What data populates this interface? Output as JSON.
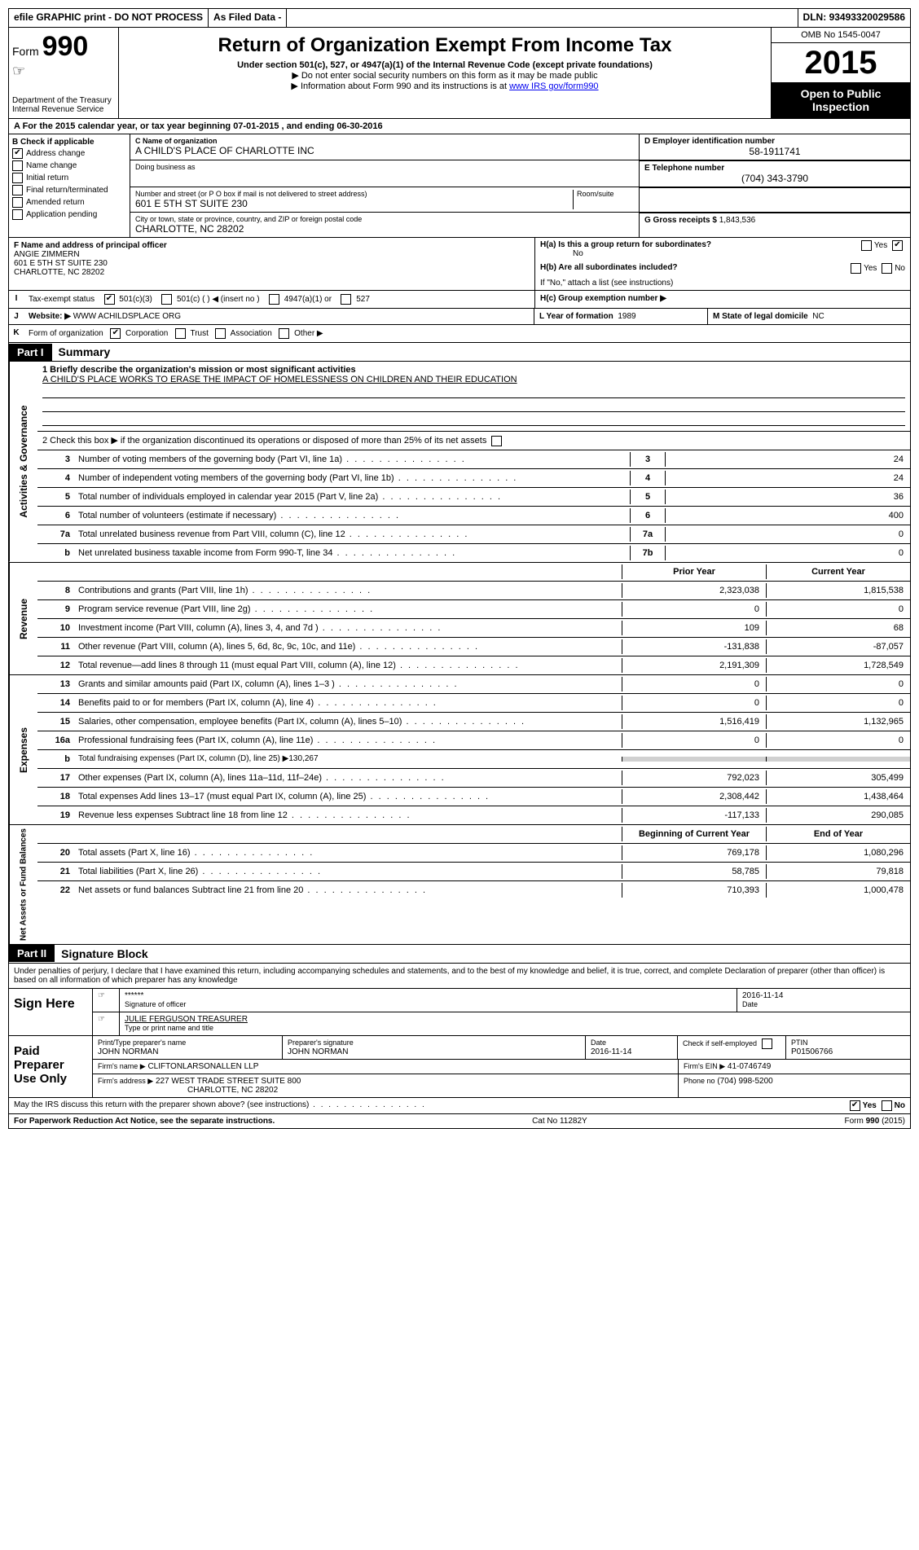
{
  "topbar": {
    "efile": "efile GRAPHIC print - DO NOT PROCESS",
    "asfiled": "As Filed Data -",
    "dln_label": "DLN:",
    "dln": "93493320029586"
  },
  "header": {
    "form_label": "Form",
    "form_num": "990",
    "dept": "Department of the Treasury",
    "irs": "Internal Revenue Service",
    "title": "Return of Organization Exempt From Income Tax",
    "sub1": "Under section 501(c), 527, or 4947(a)(1) of the Internal Revenue Code (except private foundations)",
    "sub2": "▶ Do not enter social security numbers on this form as it may be made public",
    "sub3": "▶ Information about Form 990 and its instructions is at ",
    "link": "www IRS gov/form990",
    "omb": "OMB No 1545-0047",
    "year": "2015",
    "open": "Open to Public Inspection"
  },
  "rowA": "A  For the 2015 calendar year, or tax year beginning 07-01-2015    , and ending 06-30-2016",
  "boxB": {
    "title": "B Check if applicable",
    "items": [
      {
        "label": "Address change",
        "checked": true
      },
      {
        "label": "Name change",
        "checked": false
      },
      {
        "label": "Initial return",
        "checked": false
      },
      {
        "label": "Final return/terminated",
        "checked": false
      },
      {
        "label": "Amended return",
        "checked": false
      },
      {
        "label": "Application pending",
        "checked": false
      }
    ]
  },
  "boxC": {
    "label": "C Name of organization",
    "name": "A CHILD'S PLACE OF CHARLOTTE INC",
    "dba_label": "Doing business as",
    "addr_label": "Number and street (or P O box if mail is not delivered to street address)",
    "room_label": "Room/suite",
    "addr": "601 E 5TH ST SUITE 230",
    "city_label": "City or town, state or province, country, and ZIP or foreign postal code",
    "city": "CHARLOTTE, NC 28202"
  },
  "boxD": {
    "label": "D Employer identification number",
    "value": "58-1911741"
  },
  "boxE": {
    "label": "E Telephone number",
    "value": "(704) 343-3790"
  },
  "boxG": {
    "label": "G Gross receipts $",
    "value": "1,843,536"
  },
  "boxF": {
    "label": "F Name and address of principal officer",
    "name": "ANGIE ZIMMERN",
    "addr1": "601 E 5TH ST SUITE 230",
    "addr2": "CHARLOTTE, NC 28202"
  },
  "boxH": {
    "ha": "H(a)  Is this a group return for subordinates?",
    "ha_ans": "No",
    "hb": "H(b)  Are all subordinates included?",
    "hb_note": "If \"No,\" attach a list (see instructions)",
    "hc": "H(c)  Group exemption number ▶"
  },
  "rowI": {
    "label": "I",
    "text": "Tax-exempt status",
    "opt1": "501(c)(3)",
    "opt2": "501(c) (  ) ◀ (insert no )",
    "opt3": "4947(a)(1) or",
    "opt4": "527"
  },
  "rowJ": {
    "label": "J",
    "text": "Website: ▶",
    "value": "WWW ACHILDSPLACE ORG"
  },
  "rowK": {
    "label": "K",
    "text": "Form of organization",
    "opts": [
      "Corporation",
      "Trust",
      "Association",
      "Other ▶"
    ],
    "checked": 0
  },
  "rowL": {
    "label": "L Year of formation",
    "value": "1989"
  },
  "rowM": {
    "label": "M State of legal domicile",
    "value": "NC"
  },
  "parts": {
    "p1": "Part I",
    "p1_title": "Summary",
    "p2": "Part II",
    "p2_title": "Signature Block"
  },
  "summary": {
    "q1": "1 Briefly describe the organization's mission or most significant activities",
    "mission": "A CHILD'S PLACE WORKS TO ERASE THE IMPACT OF HOMELESSNESS ON CHILDREN AND THEIR EDUCATION",
    "q2": "2 Check this box ▶     if the organization discontinued its operations or disposed of more than 25% of its net assets",
    "lines_gov": [
      {
        "n": "3",
        "d": "Number of voting members of the governing body (Part VI, line 1a)",
        "k": "3",
        "v": "24"
      },
      {
        "n": "4",
        "d": "Number of independent voting members of the governing body (Part VI, line 1b)",
        "k": "4",
        "v": "24"
      },
      {
        "n": "5",
        "d": "Total number of individuals employed in calendar year 2015 (Part V, line 2a)",
        "k": "5",
        "v": "36"
      },
      {
        "n": "6",
        "d": "Total number of volunteers (estimate if necessary)",
        "k": "6",
        "v": "400"
      },
      {
        "n": "7a",
        "d": "Total unrelated business revenue from Part VIII, column (C), line 12",
        "k": "7a",
        "v": "0"
      },
      {
        "n": "b",
        "d": "Net unrelated business taxable income from Form 990-T, line 34",
        "k": "7b",
        "v": "0"
      }
    ],
    "hdr_prior": "Prior Year",
    "hdr_current": "Current Year",
    "lines_rev": [
      {
        "n": "8",
        "d": "Contributions and grants (Part VIII, line 1h)",
        "p": "2,323,038",
        "c": "1,815,538"
      },
      {
        "n": "9",
        "d": "Program service revenue (Part VIII, line 2g)",
        "p": "0",
        "c": "0"
      },
      {
        "n": "10",
        "d": "Investment income (Part VIII, column (A), lines 3, 4, and 7d )",
        "p": "109",
        "c": "68"
      },
      {
        "n": "11",
        "d": "Other revenue (Part VIII, column (A), lines 5, 6d, 8c, 9c, 10c, and 11e)",
        "p": "-131,838",
        "c": "-87,057"
      },
      {
        "n": "12",
        "d": "Total revenue—add lines 8 through 11 (must equal Part VIII, column (A), line 12)",
        "p": "2,191,309",
        "c": "1,728,549"
      }
    ],
    "lines_exp": [
      {
        "n": "13",
        "d": "Grants and similar amounts paid (Part IX, column (A), lines 1–3 )",
        "p": "0",
        "c": "0"
      },
      {
        "n": "14",
        "d": "Benefits paid to or for members (Part IX, column (A), line 4)",
        "p": "0",
        "c": "0"
      },
      {
        "n": "15",
        "d": "Salaries, other compensation, employee benefits (Part IX, column (A), lines 5–10)",
        "p": "1,516,419",
        "c": "1,132,965"
      },
      {
        "n": "16a",
        "d": "Professional fundraising fees (Part IX, column (A), line 11e)",
        "p": "0",
        "c": "0"
      },
      {
        "n": "b",
        "d": "Total fundraising expenses (Part IX, column (D), line 25) ▶130,267",
        "p": "",
        "c": "",
        "gray": true
      },
      {
        "n": "17",
        "d": "Other expenses (Part IX, column (A), lines 11a–11d, 11f–24e)",
        "p": "792,023",
        "c": "305,499"
      },
      {
        "n": "18",
        "d": "Total expenses Add lines 13–17 (must equal Part IX, column (A), line 25)",
        "p": "2,308,442",
        "c": "1,438,464"
      },
      {
        "n": "19",
        "d": "Revenue less expenses Subtract line 18 from line 12",
        "p": "-117,133",
        "c": "290,085"
      }
    ],
    "hdr_boy": "Beginning of Current Year",
    "hdr_eoy": "End of Year",
    "lines_net": [
      {
        "n": "20",
        "d": "Total assets (Part X, line 16)",
        "p": "769,178",
        "c": "1,080,296"
      },
      {
        "n": "21",
        "d": "Total liabilities (Part X, line 26)",
        "p": "58,785",
        "c": "79,818"
      },
      {
        "n": "22",
        "d": "Net assets or fund balances Subtract line 21 from line 20",
        "p": "710,393",
        "c": "1,000,478"
      }
    ]
  },
  "side_labels": {
    "gov": "Activities & Governance",
    "rev": "Revenue",
    "exp": "Expenses",
    "net": "Net Assets or Fund Balances"
  },
  "sig": {
    "perjury": "Under penalties of perjury, I declare that I have examined this return, including accompanying schedules and statements, and to the best of my knowledge and belief, it is true, correct, and complete Declaration of preparer (other than officer) is based on all information of which preparer has any knowledge",
    "sign_here": "Sign Here",
    "stars": "******",
    "sig_officer_label": "Signature of officer",
    "date1": "2016-11-14",
    "date_label": "Date",
    "officer_name": "JULIE FERGUSON TREASURER",
    "type_label": "Type or print name and title",
    "paid": "Paid Preparer Use Only",
    "preparer_name_label": "Print/Type preparer's name",
    "preparer_name": "JOHN NORMAN",
    "preparer_sig_label": "Preparer's signature",
    "preparer_sig": "JOHN NORMAN",
    "date2_label": "Date",
    "date2": "2016-11-14",
    "check_self": "Check       if self-employed",
    "ptin_label": "PTIN",
    "ptin": "P01506766",
    "firm_name_label": "Firm's name    ▶",
    "firm_name": "CLIFTONLARSONALLEN LLP",
    "firm_ein_label": "Firm's EIN ▶",
    "firm_ein": "41-0746749",
    "firm_addr_label": "Firm's address ▶",
    "firm_addr1": "227 WEST TRADE STREET SUITE 800",
    "firm_addr2": "CHARLOTTE, NC 28202",
    "phone_label": "Phone no",
    "phone": "(704) 998-5200",
    "discuss": "May the IRS discuss this return with the preparer shown above? (see instructions)",
    "yes": "Yes",
    "no": "No"
  },
  "footer": {
    "paperwork": "For Paperwork Reduction Act Notice, see the separate instructions.",
    "cat": "Cat No 11282Y",
    "form": "Form 990 (2015)"
  }
}
